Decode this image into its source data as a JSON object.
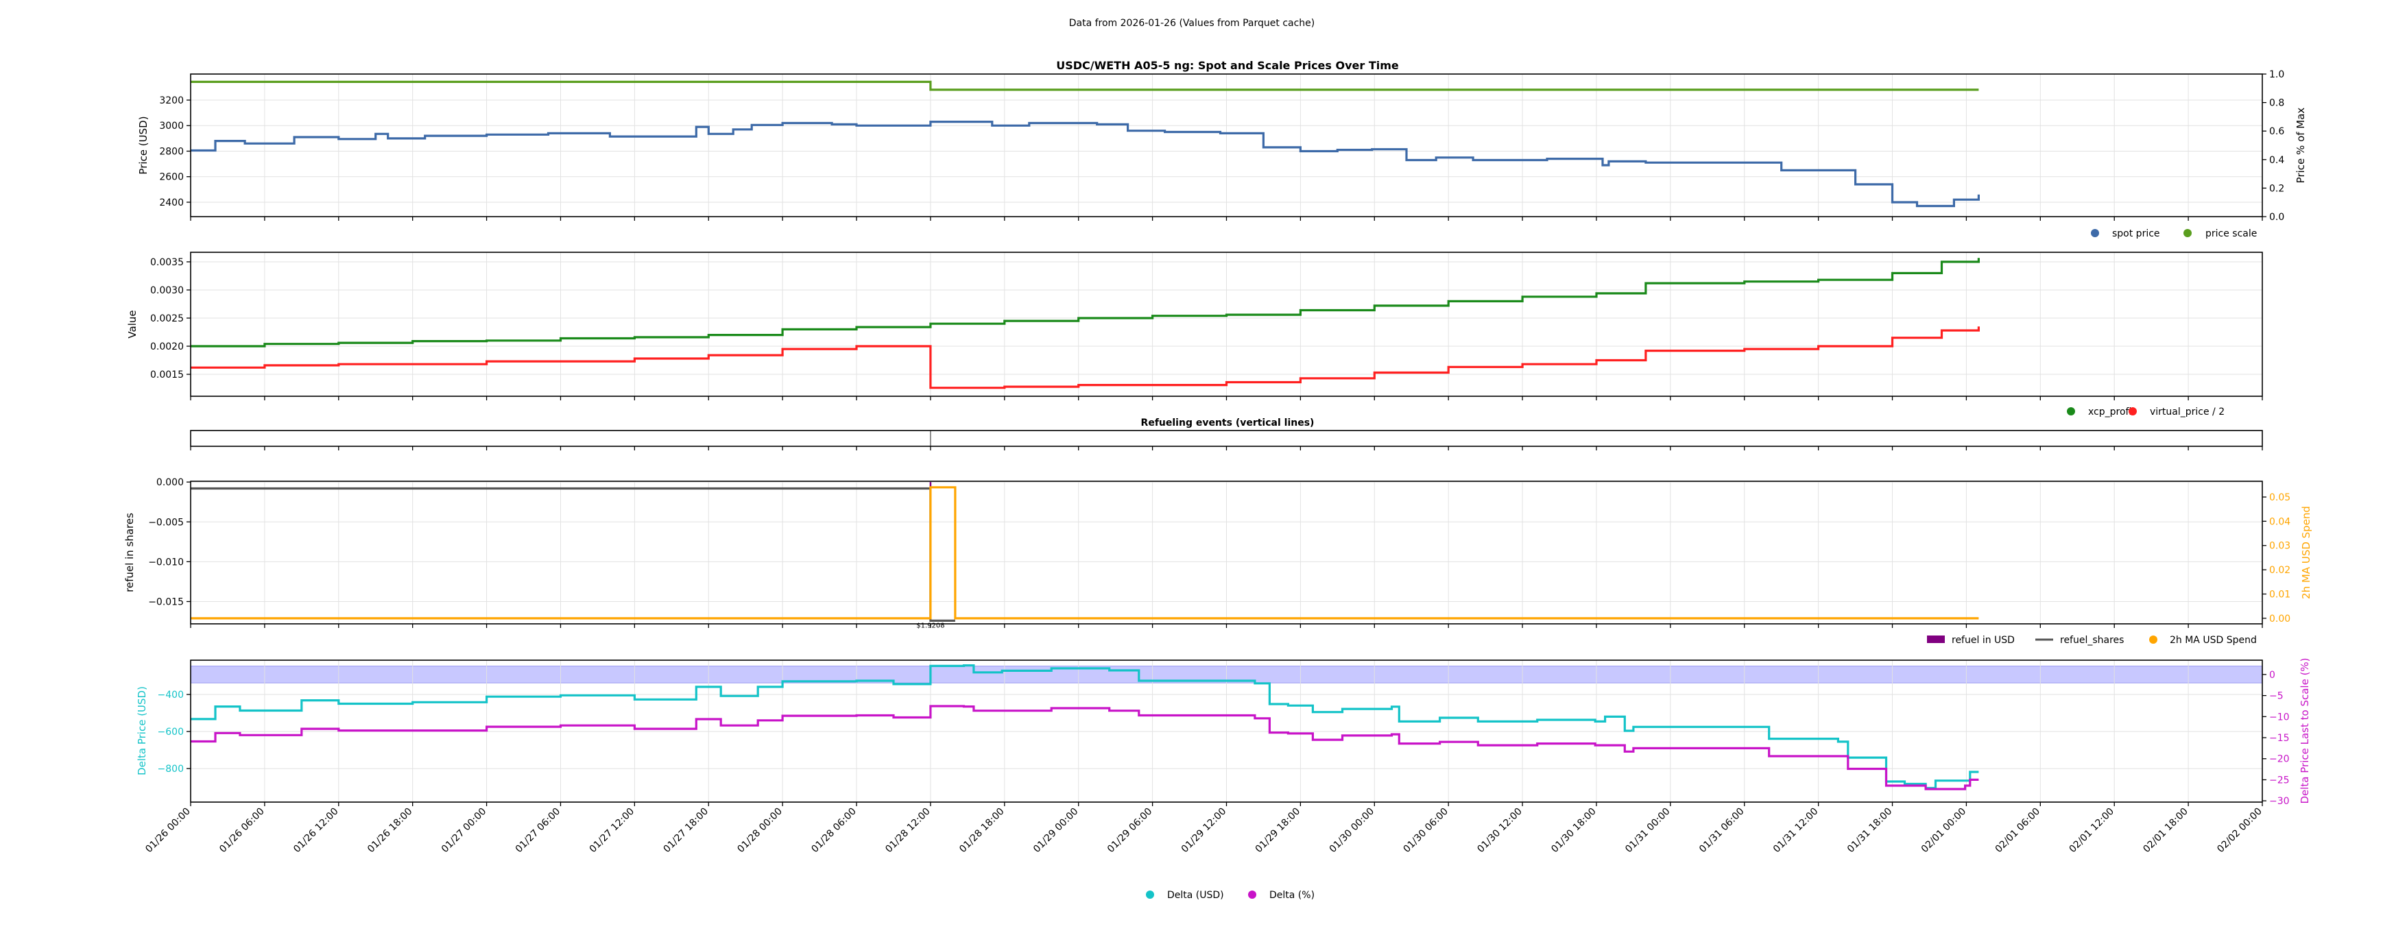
{
  "suptitle": "Data from 2026-01-26 (Values from Parquet cache)",
  "colors": {
    "spot": "#3d6aa8",
    "scale": "#5a9e1e",
    "xcp": "#1a8a1a",
    "vp": "#ff2020",
    "orange": "#ffa500",
    "grey": "#555555",
    "purple": "#800080",
    "cyan": "#14c3c8",
    "magenta": "#c814c8",
    "band": "#c8c8ff"
  },
  "x_axis": {
    "unit": "hours since 01/26 00:00",
    "xlim": [
      0,
      168
    ],
    "ticks": [
      0,
      6,
      12,
      18,
      24,
      30,
      36,
      42,
      48,
      54,
      60,
      66,
      72,
      78,
      84,
      90,
      96,
      102,
      108,
      114,
      120,
      126,
      132,
      138,
      144,
      150,
      156,
      162,
      168
    ],
    "tick_labels": [
      "01/26 00:00",
      "01/26 06:00",
      "01/26 12:00",
      "01/26 18:00",
      "01/27 00:00",
      "01/27 06:00",
      "01/27 12:00",
      "01/27 18:00",
      "01/28 00:00",
      "01/28 06:00",
      "01/28 12:00",
      "01/28 18:00",
      "01/29 00:00",
      "01/29 06:00",
      "01/29 12:00",
      "01/29 18:00",
      "01/30 00:00",
      "01/30 06:00",
      "01/30 12:00",
      "01/30 18:00",
      "01/31 00:00",
      "01/31 06:00",
      "01/31 12:00",
      "01/31 18:00",
      "02/01 00:00",
      "02/01 06:00",
      "02/01 12:00",
      "02/01 18:00",
      "02/02 00:00"
    ]
  },
  "chart_data": [
    {
      "type": "line",
      "title": "USDC/WETH A05-5 ng: Spot and Scale Prices Over Time",
      "ylabel": "Price (USD)",
      "ylim": [
        2287,
        3404
      ],
      "yticks": [
        2400,
        2600,
        2800,
        3000,
        3200
      ],
      "ytick_labels": [
        "2400",
        "2600",
        "2800",
        "3000",
        "3200"
      ],
      "ylabel_right": "Price % of Max",
      "ylim_right": [
        0,
        1
      ],
      "yticks_right": [
        0,
        0.2,
        0.4,
        0.6,
        0.8,
        1.0
      ],
      "ytick_labels_right": [
        "0.0",
        "0.2",
        "0.4",
        "0.6",
        "0.8",
        "1.0"
      ],
      "legend": [
        "spot price",
        "price scale"
      ],
      "legend_loc": "below-right",
      "series": [
        {
          "name": "spot price",
          "axis": "left",
          "color_key": "spot",
          "points": [
            [
              0,
              2805
            ],
            [
              2,
              2880
            ],
            [
              4.4,
              2860
            ],
            [
              8.4,
              2910
            ],
            [
              12,
              2895
            ],
            [
              15,
              2935
            ],
            [
              16,
              2900
            ],
            [
              19,
              2920
            ],
            [
              24,
              2930
            ],
            [
              29,
              2940
            ],
            [
              34,
              2915
            ],
            [
              40.5,
              2915
            ],
            [
              41,
              2990
            ],
            [
              42,
              2935
            ],
            [
              44,
              2970
            ],
            [
              45.5,
              3005
            ],
            [
              48,
              3020
            ],
            [
              52,
              3010
            ],
            [
              54,
              3000
            ],
            [
              59,
              3000
            ],
            [
              60,
              3030
            ],
            [
              63,
              3030
            ],
            [
              65,
              3000
            ],
            [
              68,
              3020
            ],
            [
              73.5,
              3010
            ],
            [
              76,
              2960
            ],
            [
              79,
              2950
            ],
            [
              83.5,
              2940
            ],
            [
              87,
              2830
            ],
            [
              90,
              2800
            ],
            [
              93,
              2810
            ],
            [
              95.8,
              2815
            ],
            [
              98.6,
              2730
            ],
            [
              101,
              2750
            ],
            [
              104,
              2730
            ],
            [
              110,
              2740
            ],
            [
              114.5,
              2690
            ],
            [
              115,
              2720
            ],
            [
              118,
              2710
            ],
            [
              126,
              2710
            ],
            [
              129,
              2650
            ],
            [
              135,
              2540
            ],
            [
              138,
              2400
            ],
            [
              140,
              2370
            ],
            [
              143,
              2420
            ],
            [
              145,
              2460
            ]
          ]
        },
        {
          "name": "price scale",
          "axis": "right",
          "color_key": "scale",
          "points": [
            [
              0,
              0.945
            ],
            [
              60,
              0.89
            ],
            [
              145,
              0.89
            ]
          ]
        }
      ]
    },
    {
      "type": "line",
      "ylabel": "Value",
      "ylim": [
        0.00111,
        0.00367
      ],
      "yticks": [
        0.0015,
        0.002,
        0.0025,
        0.003,
        0.0035
      ],
      "ytick_labels": [
        "0.0015",
        "0.0020",
        "0.0025",
        "0.0030",
        "0.0035"
      ],
      "legend": [
        "xcp_profit",
        "virtual_price / 2"
      ],
      "legend_loc": "below-right",
      "series": [
        {
          "name": "xcp_profit",
          "axis": "left",
          "color_key": "xcp",
          "points": [
            [
              0,
              0.002
            ],
            [
              6,
              0.00204
            ],
            [
              12,
              0.00206
            ],
            [
              18,
              0.00209
            ],
            [
              24,
              0.0021
            ],
            [
              30,
              0.00214
            ],
            [
              36,
              0.00216
            ],
            [
              42,
              0.0022
            ],
            [
              48,
              0.0023
            ],
            [
              54,
              0.00234
            ],
            [
              60,
              0.0024
            ],
            [
              66,
              0.00245
            ],
            [
              72,
              0.0025
            ],
            [
              78,
              0.00254
            ],
            [
              84,
              0.00256
            ],
            [
              90,
              0.00264
            ],
            [
              96,
              0.00272
            ],
            [
              102,
              0.0028
            ],
            [
              108,
              0.00288
            ],
            [
              114,
              0.00294
            ],
            [
              118,
              0.00312
            ],
            [
              126,
              0.00315
            ],
            [
              132,
              0.00318
            ],
            [
              138,
              0.0033
            ],
            [
              142,
              0.0035
            ],
            [
              145,
              0.00357
            ]
          ]
        },
        {
          "name": "virtual_price / 2",
          "axis": "left",
          "color_key": "vp",
          "points": [
            [
              0,
              0.00162
            ],
            [
              6,
              0.00166
            ],
            [
              12,
              0.00168
            ],
            [
              24,
              0.00173
            ],
            [
              36,
              0.00178
            ],
            [
              42,
              0.00184
            ],
            [
              48,
              0.00195
            ],
            [
              54,
              0.002
            ],
            [
              60,
              0.00126
            ],
            [
              66,
              0.00128
            ],
            [
              72,
              0.00131
            ],
            [
              84,
              0.00136
            ],
            [
              90,
              0.00143
            ],
            [
              96,
              0.00153
            ],
            [
              102,
              0.00163
            ],
            [
              108,
              0.00168
            ],
            [
              114,
              0.00175
            ],
            [
              118,
              0.00192
            ],
            [
              126,
              0.00195
            ],
            [
              132,
              0.002
            ],
            [
              138,
              0.00215
            ],
            [
              142,
              0.00228
            ],
            [
              145,
              0.00235
            ]
          ]
        }
      ]
    },
    {
      "type": "line",
      "title": "Refueling events (vertical lines)",
      "events": [
        60
      ]
    },
    {
      "type": "line",
      "ylabel": "refuel in shares",
      "ylim": [
        -0.0178,
        0.0001
      ],
      "yticks": [
        0,
        -0.005,
        -0.01,
        -0.015
      ],
      "ytick_labels": [
        "0.000",
        "−0.005",
        "−0.010",
        "−0.015"
      ],
      "ylabel_right": "2h MA USD Spend",
      "ylim_right": [
        -0.0023,
        0.0565
      ],
      "yticks_right": [
        0,
        0.01,
        0.02,
        0.03,
        0.04,
        0.05
      ],
      "ytick_labels_right": [
        "0.00",
        "0.01",
        "0.02",
        "0.03",
        "0.04",
        "0.05"
      ],
      "legend": [
        "refuel in USD",
        "refuel_shares",
        "2h MA USD Spend"
      ],
      "legend_loc": "below-right",
      "refuel_events": [
        {
          "time": 60,
          "shares": -0.0174,
          "usd": 1.9208,
          "label": "$1.9208"
        }
      ],
      "series": [
        {
          "name": "refuel_shares",
          "axis": "left",
          "color_key": "grey",
          "points": [
            [
              0,
              -0.0008
            ],
            [
              60,
              -0.0174
            ],
            [
              62,
              -0.0174
            ]
          ]
        },
        {
          "name": "2h MA USD Spend",
          "axis": "right",
          "color_key": "orange",
          "points": [
            [
              0,
              0
            ],
            [
              60,
              0.054
            ],
            [
              62,
              0
            ],
            [
              145,
              0
            ]
          ]
        }
      ]
    },
    {
      "type": "line",
      "ylabel": "Delta Price (USD)",
      "ylim": [
        -981,
        -215
      ],
      "yticks": [
        -400,
        -600,
        -800
      ],
      "ytick_labels": [
        "−400",
        "−600",
        "−800"
      ],
      "ylabel_right": "Delta Price Last to Scale (%)",
      "ylim_right": [
        -30.3,
        3.4
      ],
      "yticks_right": [
        0,
        -5,
        -10,
        -15,
        -20,
        -25,
        -30
      ],
      "ytick_labels_right": [
        "0",
        "−5",
        "−10",
        "−15",
        "−20",
        "−25",
        "−30"
      ],
      "band_right": [
        -2,
        2
      ],
      "legend": [
        "Delta (USD)",
        "Delta (%)"
      ],
      "legend_loc": "lower-center",
      "series": [
        {
          "name": "Delta (USD)",
          "axis": "left",
          "color_key": "cyan",
          "points": [
            [
              0,
              -533
            ],
            [
              2,
              -465
            ],
            [
              4,
              -487
            ],
            [
              9,
              -432
            ],
            [
              12,
              -450
            ],
            [
              18,
              -442
            ],
            [
              24,
              -412
            ],
            [
              30,
              -405
            ],
            [
              36,
              -427
            ],
            [
              41,
              -359
            ],
            [
              43,
              -408
            ],
            [
              46,
              -359
            ],
            [
              48,
              -329
            ],
            [
              54,
              -326
            ],
            [
              57,
              -344
            ],
            [
              60,
              -246
            ],
            [
              62.7,
              -243
            ],
            [
              63.5,
              -281
            ],
            [
              65.8,
              -272
            ],
            [
              69.8,
              -259
            ],
            [
              74.5,
              -270
            ],
            [
              76.9,
              -326
            ],
            [
              81.6,
              -326
            ],
            [
              86.3,
              -340
            ],
            [
              87.5,
              -452
            ],
            [
              89,
              -460
            ],
            [
              91,
              -495
            ],
            [
              93.4,
              -478
            ],
            [
              97.4,
              -466
            ],
            [
              98,
              -546
            ],
            [
              101.3,
              -526
            ],
            [
              104.4,
              -546
            ],
            [
              109.2,
              -537
            ],
            [
              113.9,
              -546
            ],
            [
              114.7,
              -520
            ],
            [
              116.3,
              -596
            ],
            [
              117,
              -575
            ],
            [
              125,
              -575
            ],
            [
              128,
              -639
            ],
            [
              133.6,
              -655
            ],
            [
              134.4,
              -741
            ],
            [
              137.5,
              -870
            ],
            [
              139,
              -883
            ],
            [
              140.7,
              -905
            ],
            [
              141.5,
              -865
            ],
            [
              143.9,
              -865
            ],
            [
              144.3,
              -818
            ],
            [
              145,
              -818
            ]
          ]
        },
        {
          "name": "Delta (%)",
          "axis": "right",
          "color_key": "magenta",
          "points": [
            [
              0,
              -15.9
            ],
            [
              2,
              -13.9
            ],
            [
              4,
              -14.4
            ],
            [
              9,
              -12.9
            ],
            [
              12,
              -13.3
            ],
            [
              24,
              -12.4
            ],
            [
              30,
              -12.1
            ],
            [
              36,
              -12.9
            ],
            [
              41,
              -10.6
            ],
            [
              43,
              -12.1
            ],
            [
              46,
              -10.9
            ],
            [
              48,
              -9.8
            ],
            [
              54,
              -9.7
            ],
            [
              57,
              -10.2
            ],
            [
              60,
              -7.5
            ],
            [
              62.7,
              -7.6
            ],
            [
              63.5,
              -8.6
            ],
            [
              69.8,
              -8.0
            ],
            [
              74.5,
              -8.6
            ],
            [
              76.9,
              -9.7
            ],
            [
              86.3,
              -10.4
            ],
            [
              87.5,
              -13.8
            ],
            [
              89,
              -14.0
            ],
            [
              91,
              -15.5
            ],
            [
              93.4,
              -14.5
            ],
            [
              97.4,
              -14.2
            ],
            [
              98,
              -16.4
            ],
            [
              101.3,
              -16.0
            ],
            [
              104.4,
              -16.8
            ],
            [
              109.2,
              -16.4
            ],
            [
              113.9,
              -16.8
            ],
            [
              116.3,
              -18.3
            ],
            [
              117,
              -17.5
            ],
            [
              125,
              -17.5
            ],
            [
              128,
              -19.4
            ],
            [
              133.6,
              -19.4
            ],
            [
              134.4,
              -22.4
            ],
            [
              137.5,
              -26.4
            ],
            [
              140.7,
              -27.2
            ],
            [
              143.9,
              -26.4
            ],
            [
              144.3,
              -25.0
            ],
            [
              145,
              -25.0
            ]
          ]
        }
      ]
    }
  ]
}
